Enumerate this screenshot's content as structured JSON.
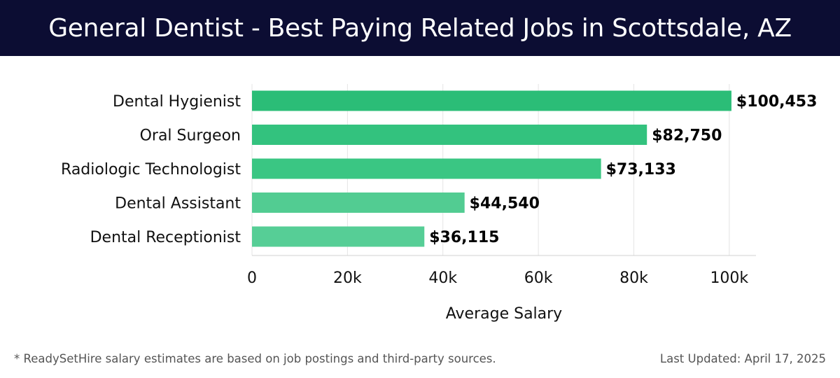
{
  "header": {
    "title": "General Dentist - Best Paying Related Jobs in Scottsdale, AZ"
  },
  "chart_data": {
    "type": "bar",
    "orientation": "horizontal",
    "categories": [
      "Dental Hygienist",
      "Oral Surgeon",
      "Radiologic Technologist",
      "Dental Assistant",
      "Dental Receptionist"
    ],
    "values": [
      100453,
      82750,
      73133,
      44540,
      36115
    ],
    "value_labels": [
      "$100,453",
      "$82,750",
      "$73,133",
      "$44,540",
      "$36,115"
    ],
    "bar_colors": [
      "#2bbd77",
      "#33c27e",
      "#3ac683",
      "#52cc92",
      "#56ce96"
    ],
    "xlabel": "Average Salary",
    "ylabel": "",
    "xlim": [
      0,
      105600
    ],
    "xticks": [
      0,
      20000,
      40000,
      60000,
      80000,
      100000
    ],
    "xtick_labels": [
      "0",
      "20k",
      "40k",
      "60k",
      "80k",
      "100k"
    ],
    "grid": "vertical"
  },
  "footer": {
    "note": "* ReadySetHire salary estimates are based on job postings and third-party sources.",
    "updated": "Last Updated: April 17, 2025"
  },
  "colors": {
    "header_bg": "#0c0d33",
    "header_text": "#ffffff",
    "grid": "#e4e4e4",
    "axis": "#d0d0d0",
    "label_text": "#111111"
  }
}
